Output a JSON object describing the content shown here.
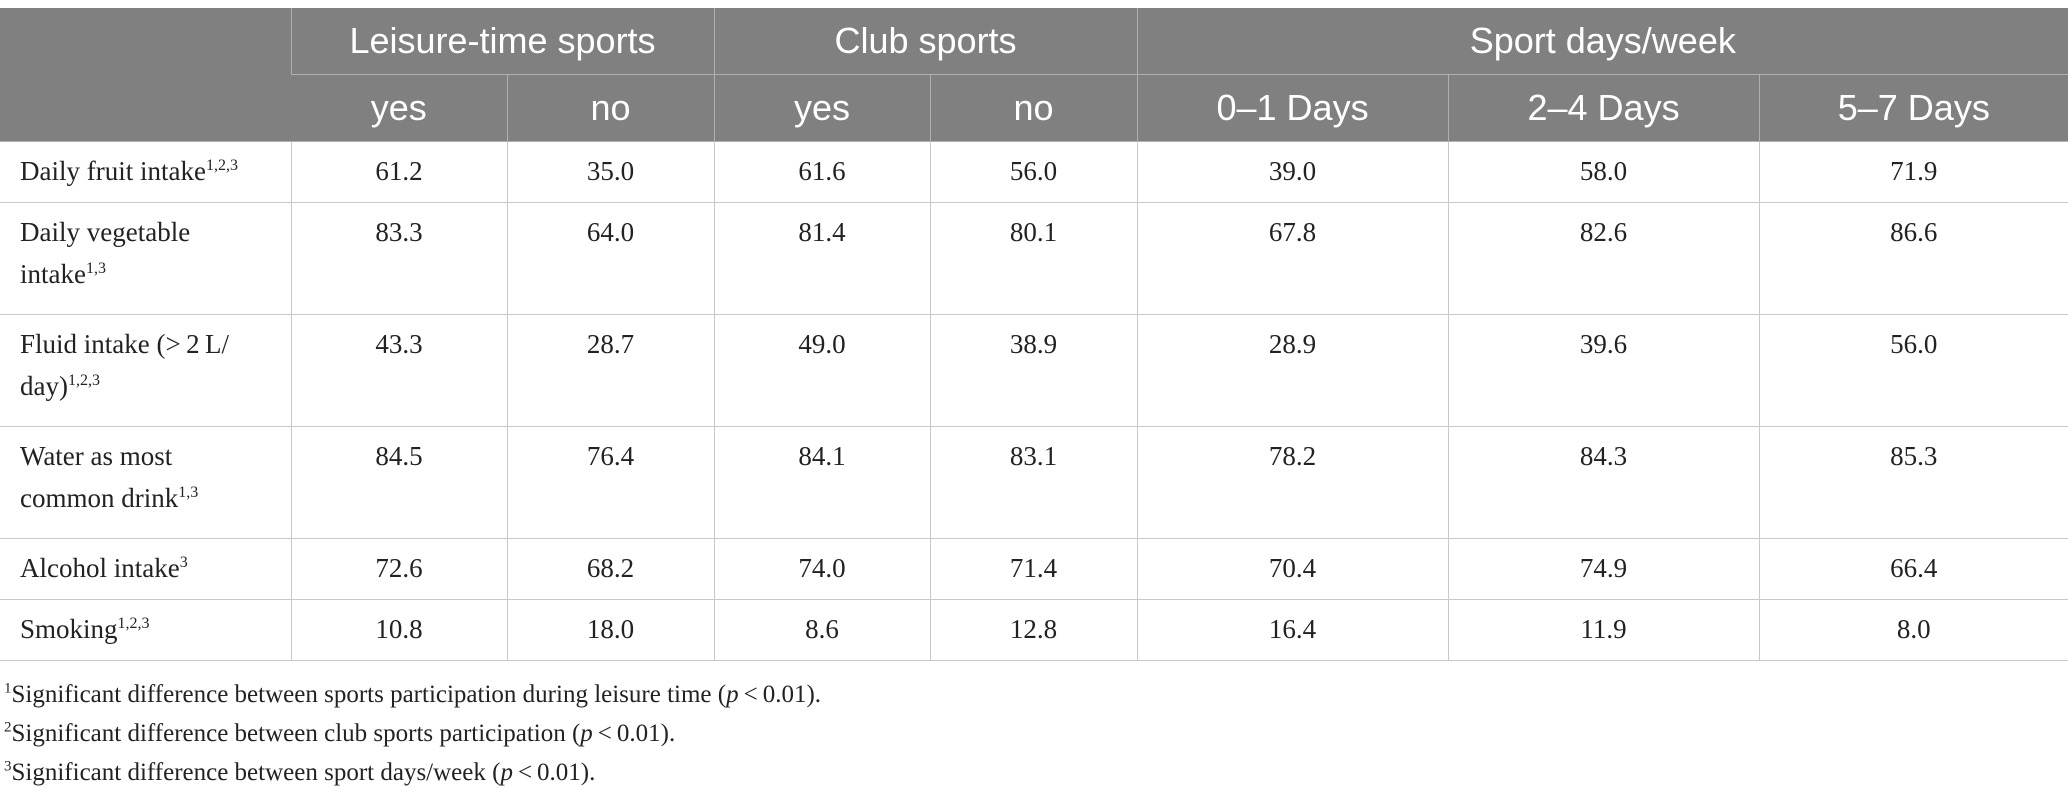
{
  "table": {
    "group_headers": [
      "",
      "Leisure-time sports",
      "Club sports",
      "Sport days/week"
    ],
    "sub_headers": [
      "yes",
      "no",
      "yes",
      "no",
      "0–1 Days",
      "2–4 Days",
      "5–7 Days"
    ],
    "rows": [
      {
        "label": "Daily fruit intake",
        "sup": "1,2,3",
        "values": [
          "61.2",
          "35.0",
          "61.6",
          "56.0",
          "39.0",
          "58.0",
          "71.9"
        ]
      },
      {
        "label": "Daily vegetable intake",
        "sup": "1,3",
        "values": [
          "83.3",
          "64.0",
          "81.4",
          "80.1",
          "67.8",
          "82.6",
          "86.6"
        ]
      },
      {
        "label": "Fluid intake (> 2 L/ day)",
        "sup": "1,2,3",
        "values": [
          "43.3",
          "28.7",
          "49.0",
          "38.9",
          "28.9",
          "39.6",
          "56.0"
        ]
      },
      {
        "label": "Water as most common drink",
        "sup": "1,3",
        "values": [
          "84.5",
          "76.4",
          "84.1",
          "83.1",
          "78.2",
          "84.3",
          "85.3"
        ]
      },
      {
        "label": "Alcohol intake",
        "sup": "3",
        "values": [
          "72.6",
          "68.2",
          "74.0",
          "71.4",
          "70.4",
          "74.9",
          "66.4"
        ]
      },
      {
        "label": "Smoking",
        "sup": "1,2,3",
        "values": [
          "10.8",
          "18.0",
          "8.6",
          "12.8",
          "16.4",
          "11.9",
          "8.0"
        ]
      }
    ]
  },
  "footnotes": [
    {
      "mark": "1",
      "text": "Significant difference between sports participation during leisure time (",
      "p": "p",
      "tail": " < 0.01)."
    },
    {
      "mark": "2",
      "text": "Significant difference between club sports participation (",
      "p": "p",
      "tail": " < 0.01)."
    },
    {
      "mark": "3",
      "text": "Significant difference between sport days/week (",
      "p": "p",
      "tail": " < 0.01)."
    }
  ],
  "colors": {
    "header_bg": "#808080",
    "header_text": "#ffffff",
    "grid": "#c8c8c8"
  }
}
